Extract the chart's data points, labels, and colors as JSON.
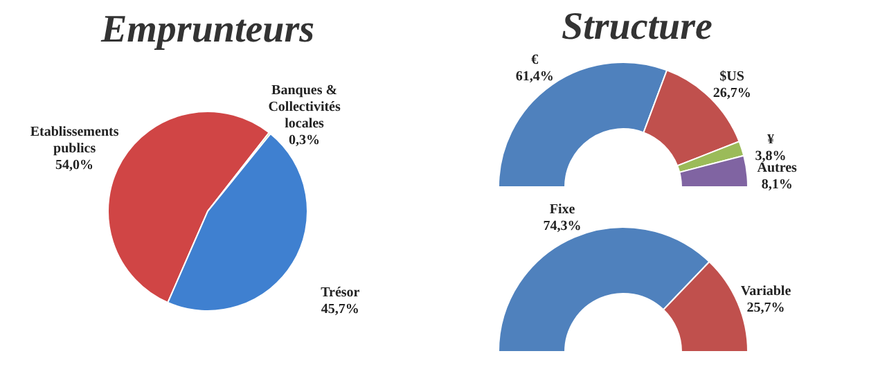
{
  "chart_data": [
    {
      "type": "pie",
      "title": "Emprunteurs",
      "categories": [
        "Etablissements publics",
        "Banques & Collectivités locales",
        "Trésor"
      ],
      "values": [
        54.0,
        0.3,
        45.7
      ],
      "colors": [
        "#d04545",
        "#8fbf50",
        "#3f80d0"
      ],
      "value_labels": [
        "54,0%",
        "0,3%",
        "45,7%"
      ],
      "legend": false
    },
    {
      "type": "donut",
      "title": "Structure",
      "categories": [
        "€",
        "$US",
        "¥",
        "Autres"
      ],
      "values": [
        61.4,
        26.7,
        3.8,
        8.1
      ],
      "colors": [
        "#4f81bd",
        "#c0504d",
        "#9bbb59",
        "#8064a2"
      ],
      "value_labels": [
        "61,4%",
        "26,7%",
        "3,8%",
        "8,1%"
      ],
      "legend": false
    },
    {
      "type": "donut",
      "categories": [
        "Fixe",
        "Variable"
      ],
      "values": [
        74.3,
        25.7
      ],
      "colors": [
        "#4f81bd",
        "#c0504d"
      ],
      "value_labels": [
        "74,3%",
        "25,7%"
      ],
      "legend": false
    }
  ]
}
